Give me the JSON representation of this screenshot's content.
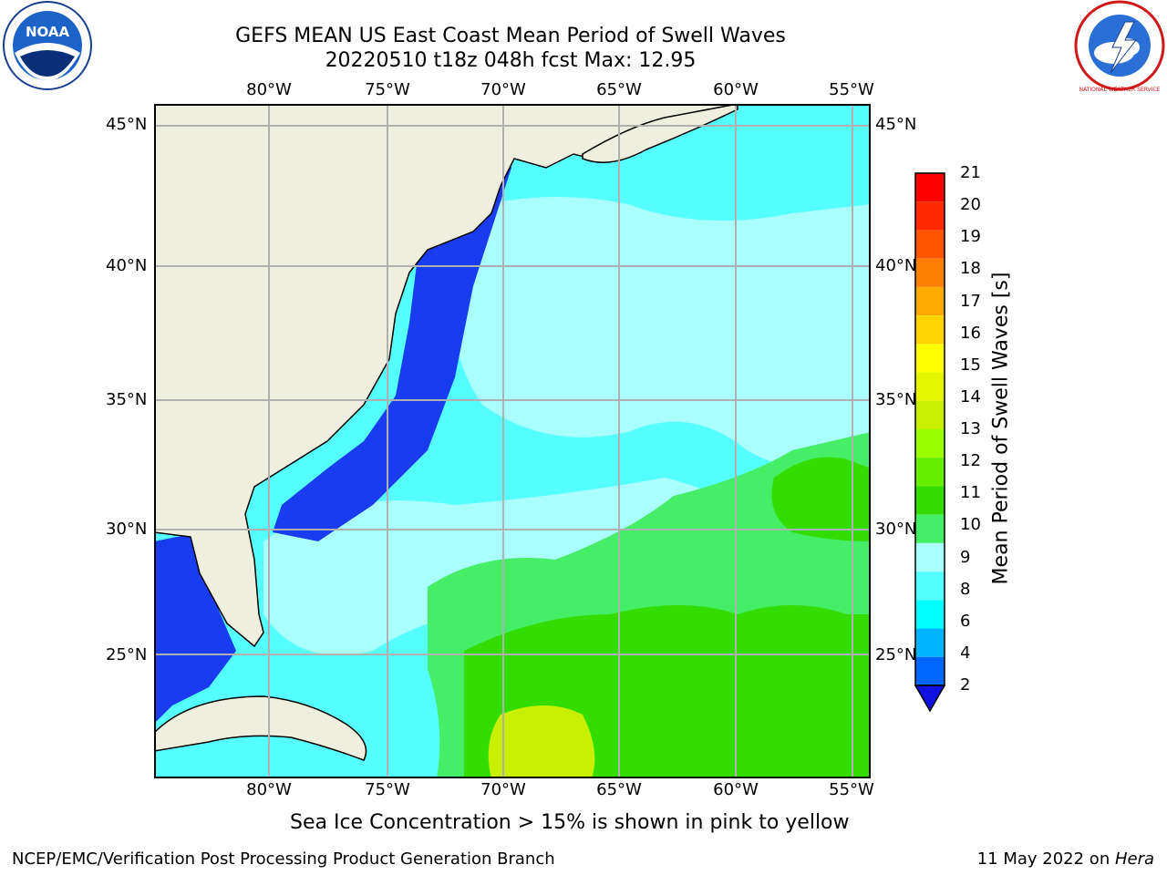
{
  "header": {
    "title_line1": "GEFS MEAN US East Coast Mean Period of Swell Waves",
    "title_line2": "20220510 t18z 048h fcst   Max: 12.95"
  },
  "logos": {
    "left": {
      "text": "NOAA",
      "icon": "noaa-logo-icon"
    },
    "right": {
      "text": "NATIONAL WEATHER SERVICE",
      "icon": "nws-logo-icon"
    }
  },
  "map": {
    "lon_labels": [
      "80°W",
      "75°W",
      "70°W",
      "65°W",
      "60°W",
      "55°W"
    ],
    "lat_labels": [
      "45°N",
      "40°N",
      "35°N",
      "30°N",
      "25°N"
    ],
    "colors": {
      "land": "#efefdf",
      "gridline": "#b0b0b0",
      "coast": "#000000"
    }
  },
  "colorbar": {
    "title": "Mean Period of Swell Waves [s]",
    "ticks": [
      "21",
      "20",
      "19",
      "18",
      "17",
      "16",
      "15",
      "14",
      "13",
      "12",
      "11",
      "10",
      "9",
      "8",
      "6",
      "4",
      "2"
    ],
    "colors": [
      "#ff0000",
      "#ff2a00",
      "#ff5500",
      "#ff7f00",
      "#ffaa00",
      "#ffd400",
      "#ffff00",
      "#e5f500",
      "#c8f000",
      "#99ff00",
      "#66ee00",
      "#33dd00",
      "#44ee66",
      "#aaffff",
      "#55ffff",
      "#00ffff",
      "#00b4ff",
      "#0066ff"
    ],
    "extend_color": "#1010e0"
  },
  "note": "Sea Ice Concentration > 15% is shown in pink to yellow",
  "footer": {
    "left": "NCEP/EMC/Verification Post Processing Product Generation Branch",
    "right_date": "11 May 2022 on ",
    "right_host": "Hera"
  }
}
